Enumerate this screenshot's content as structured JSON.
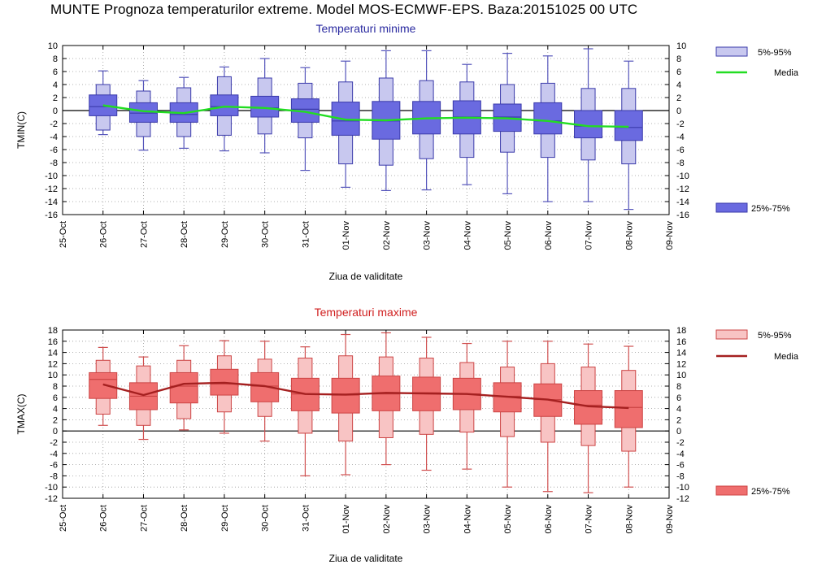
{
  "title": "MUNTE  Prognoza temperaturilor extreme.  Model MOS-ECMWF-EPS. Baza:20151025 00 UTC",
  "chart_data": [
    {
      "type": "boxplot",
      "title": "Temperaturi minime",
      "ylabel": "TMIN(C)",
      "xlabel": "Ziua de validitate",
      "ylim": [
        -16,
        10
      ],
      "yticks": [
        -16,
        -14,
        -12,
        -10,
        -8,
        -6,
        -4,
        -2,
        0,
        2,
        4,
        6,
        8,
        10
      ],
      "x_ticks": [
        "25-Oct",
        "26-Oct",
        "27-Oct",
        "28-Oct",
        "29-Oct",
        "30-Oct",
        "31-Oct",
        "01-Nov",
        "02-Nov",
        "03-Nov",
        "04-Nov",
        "05-Nov",
        "06-Nov",
        "07-Nov",
        "08-Nov",
        "09-Nov"
      ],
      "categories": [
        "26-Oct",
        "27-Oct",
        "28-Oct",
        "29-Oct",
        "30-Oct",
        "31-Oct",
        "01-Nov",
        "02-Nov",
        "03-Nov",
        "04-Nov",
        "05-Nov",
        "06-Nov",
        "07-Nov",
        "08-Nov"
      ],
      "whisker_low": [
        -3.7,
        -6.1,
        -5.8,
        -6.2,
        -6.5,
        -9.2,
        -11.8,
        -12.3,
        -12.2,
        -11.4,
        -12.8,
        -14.0,
        -14.0,
        -15.2
      ],
      "p5": [
        -3.0,
        -4.0,
        -4.0,
        -3.8,
        -3.6,
        -4.2,
        -8.2,
        -8.4,
        -7.4,
        -7.2,
        -6.4,
        -7.2,
        -7.6,
        -8.2
      ],
      "p25": [
        -0.8,
        -1.8,
        -1.8,
        -0.8,
        -1.0,
        -1.8,
        -3.8,
        -4.4,
        -3.6,
        -3.6,
        -3.2,
        -3.6,
        -4.2,
        -4.6
      ],
      "median": [
        0.6,
        -0.4,
        -0.6,
        0.6,
        0.4,
        0.2,
        -1.6,
        -1.6,
        -1.2,
        -1.0,
        -1.0,
        -1.6,
        -2.4,
        -2.6
      ],
      "p75": [
        2.4,
        1.2,
        1.2,
        2.4,
        2.2,
        1.8,
        1.3,
        1.4,
        1.4,
        1.5,
        1.0,
        1.2,
        0.0,
        0.0
      ],
      "p95": [
        4.0,
        3.0,
        3.5,
        5.2,
        5.0,
        4.2,
        4.4,
        5.0,
        4.6,
        4.4,
        4.0,
        4.2,
        3.4,
        3.4
      ],
      "whisker_high": [
        6.1,
        4.6,
        5.1,
        6.7,
        8.0,
        6.6,
        7.6,
        9.2,
        9.2,
        7.1,
        8.8,
        8.4,
        9.5,
        7.6
      ],
      "mean": [
        0.8,
        -0.1,
        -0.4,
        0.6,
        0.4,
        -0.2,
        -1.4,
        -1.5,
        -1.2,
        -1.1,
        -1.2,
        -1.6,
        -2.4,
        -2.5
      ],
      "colors": {
        "box_outer": "#c8c8ef",
        "box_inner": "#6a6ae0",
        "edge": "#3a3aaa",
        "whisker": "#5555bb",
        "mean_line": "#22dd22",
        "title": "#2a2aa0"
      },
      "legend": [
        {
          "label": "5%-95%"
        },
        {
          "label": "Media"
        },
        {
          "label": "25%-75%"
        }
      ]
    },
    {
      "type": "boxplot",
      "title": "Temperaturi maxime",
      "ylabel": "TMAX(C)",
      "xlabel": "Ziua de validitate",
      "ylim": [
        -12,
        18
      ],
      "yticks": [
        -12,
        -10,
        -8,
        -6,
        -4,
        -2,
        0,
        2,
        4,
        6,
        8,
        10,
        12,
        14,
        16,
        18
      ],
      "x_ticks": [
        "25-Oct",
        "26-Oct",
        "27-Oct",
        "28-Oct",
        "29-Oct",
        "30-Oct",
        "31-Oct",
        "01-Nov",
        "02-Nov",
        "03-Nov",
        "04-Nov",
        "05-Nov",
        "06-Nov",
        "07-Nov",
        "08-Nov",
        "09-Nov"
      ],
      "categories": [
        "26-Oct",
        "27-Oct",
        "28-Oct",
        "29-Oct",
        "30-Oct",
        "31-Oct",
        "01-Nov",
        "02-Nov",
        "03-Nov",
        "04-Nov",
        "05-Nov",
        "06-Nov",
        "07-Nov",
        "08-Nov"
      ],
      "whisker_low": [
        1.0,
        -1.5,
        0.2,
        -0.4,
        -1.8,
        -8.0,
        -7.8,
        -6.0,
        -7.0,
        -6.8,
        -10.0,
        -10.8,
        -11.0,
        -10.0
      ],
      "p5": [
        3.0,
        1.0,
        2.2,
        3.4,
        2.6,
        -0.4,
        -1.8,
        -1.2,
        -0.6,
        -0.2,
        -1.0,
        -2.0,
        -2.6,
        -3.6
      ],
      "p25": [
        5.8,
        3.8,
        5.0,
        6.4,
        5.2,
        3.6,
        3.2,
        3.6,
        3.6,
        3.8,
        3.4,
        2.6,
        1.2,
        0.6
      ],
      "median": [
        9.2,
        6.2,
        8.0,
        8.4,
        8.0,
        6.6,
        6.4,
        6.6,
        6.8,
        6.6,
        6.2,
        5.6,
        4.6,
        4.2
      ],
      "p75": [
        10.4,
        8.6,
        10.4,
        11.0,
        10.4,
        9.4,
        9.4,
        9.8,
        9.6,
        9.4,
        8.6,
        8.4,
        7.2,
        7.2
      ],
      "p95": [
        12.6,
        11.6,
        12.6,
        13.4,
        12.8,
        13.0,
        13.4,
        13.2,
        13.0,
        12.2,
        11.4,
        12.0,
        11.4,
        10.8
      ],
      "whisker_high": [
        14.9,
        13.2,
        15.2,
        16.1,
        16.0,
        15.0,
        17.2,
        17.5,
        16.7,
        15.6,
        16.0,
        16.0,
        15.5,
        15.1
      ],
      "mean": [
        8.3,
        6.4,
        8.4,
        8.6,
        8.0,
        6.6,
        6.5,
        6.8,
        6.7,
        6.6,
        6.1,
        5.6,
        4.4,
        4.1
      ],
      "colors": {
        "box_outer": "#f8c4c4",
        "box_inner": "#ef6e6e",
        "edge": "#c44",
        "whisker": "#d05050",
        "mean_line": "#a52020",
        "title": "#d02020"
      },
      "legend": [
        {
          "label": "5%-95%"
        },
        {
          "label": "Media"
        },
        {
          "label": "25%-75%"
        }
      ]
    }
  ]
}
